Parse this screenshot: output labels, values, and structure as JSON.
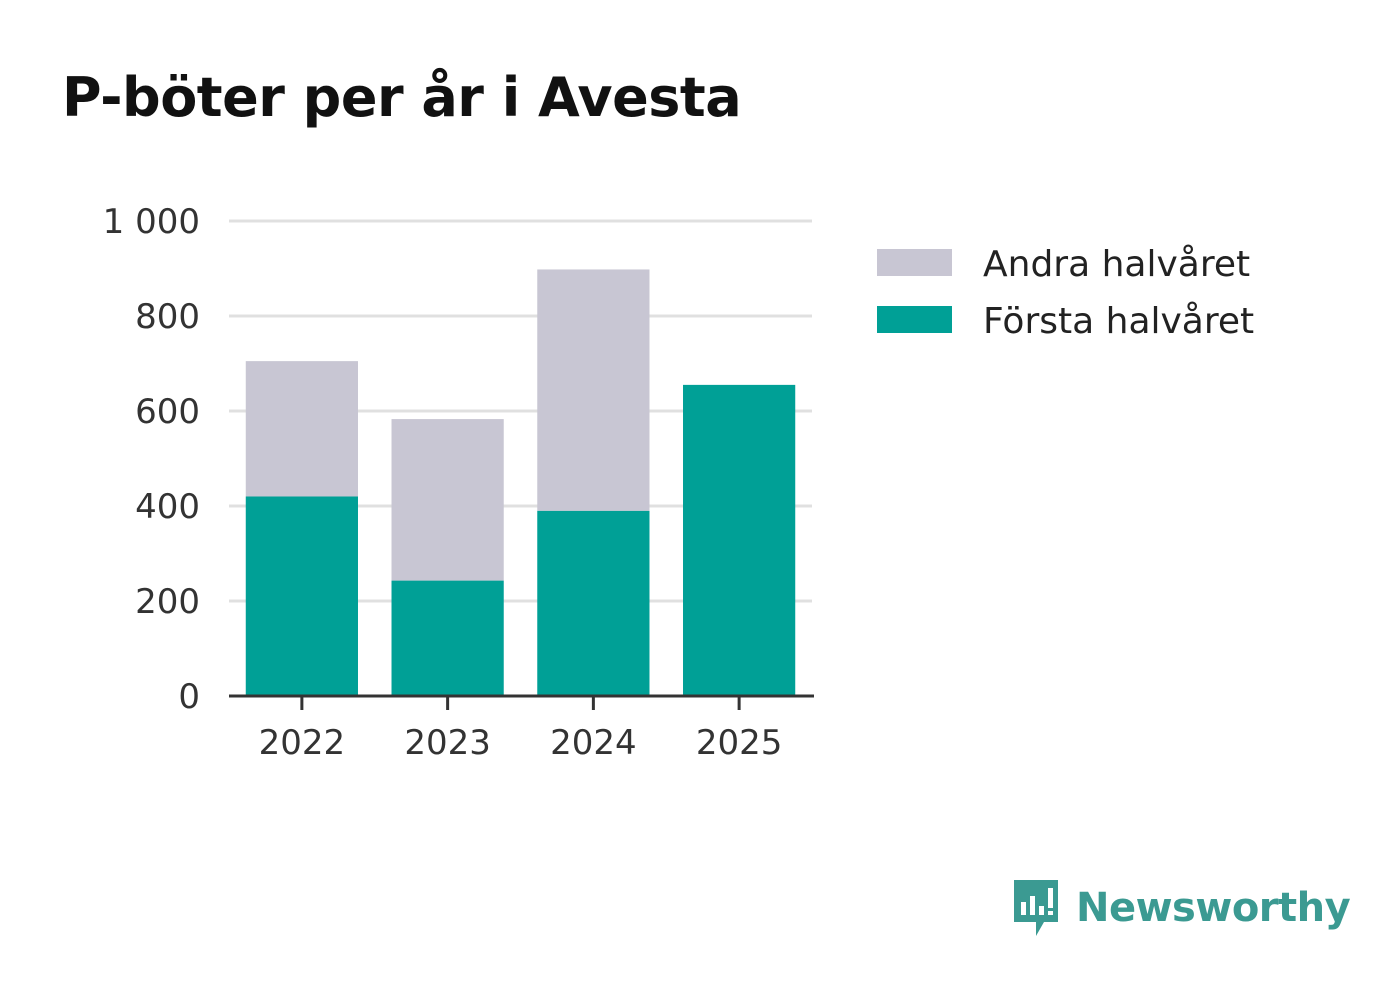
{
  "chart_data": {
    "type": "bar",
    "stacked": true,
    "title": "P-böter per år i Avesta",
    "categories": [
      "2022",
      "2023",
      "2024",
      "2025"
    ],
    "series": [
      {
        "name": "Första halvåret",
        "values": [
          420,
          243,
          390,
          655
        ],
        "color": "#00a096"
      },
      {
        "name": "Andra halvåret",
        "values": [
          285,
          340,
          508,
          0
        ],
        "color": "#c8c6d3"
      }
    ],
    "ylim": [
      0,
      1000
    ],
    "yticks": [
      0,
      200,
      400,
      600,
      800,
      1000
    ],
    "ytick_labels": [
      "0",
      "200",
      "400",
      "600",
      "800",
      "1 000"
    ],
    "grid": true,
    "legend_placement": "right",
    "legend_order": [
      "Andra halvåret",
      "Första halvåret"
    ],
    "xlabel": "",
    "ylabel": ""
  },
  "branding": {
    "logo_text": "Newsworthy",
    "logo_color": "#3b9a92"
  }
}
